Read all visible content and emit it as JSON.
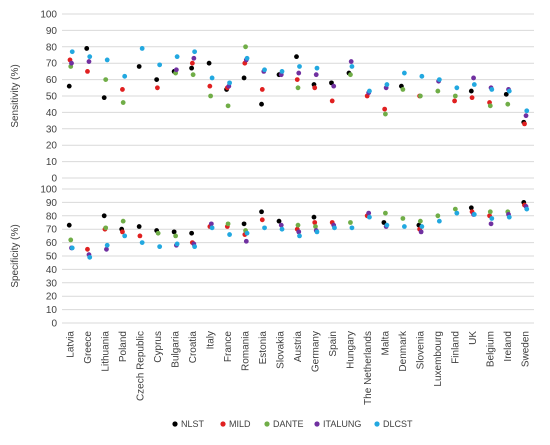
{
  "chart_data": [
    {
      "type": "scatter",
      "title": "",
      "ylabel": "Sensitivity (%)",
      "xlabel": "",
      "ylim": [
        0,
        100
      ],
      "yticks": [
        0,
        10,
        20,
        30,
        40,
        50,
        60,
        70,
        80,
        90,
        100
      ],
      "grid": true,
      "categories": [
        "Latvia",
        "Greece",
        "Lithuania",
        "Poland",
        "Czech Republic",
        "Cyprus",
        "Bulgaria",
        "Croatia",
        "Italy",
        "France",
        "Romania",
        "Estonia",
        "Slovakia",
        "Austria",
        "Germany",
        "Spain",
        "Hungary",
        "The Netherlands",
        "Malta",
        "Denmark",
        "Slovenia",
        "Luxembourg",
        "Finland",
        "UK",
        "Belgium",
        "Ireland",
        "Sweden"
      ],
      "series": [
        {
          "name": "NLST",
          "values": [
            56,
            79,
            49,
            null,
            68,
            60,
            65,
            67,
            70,
            54,
            61,
            45,
            63,
            74,
            57,
            58,
            64,
            null,
            null,
            56,
            null,
            null,
            null,
            53,
            null,
            51,
            34
          ]
        },
        {
          "name": "MILD",
          "values": [
            72,
            65,
            null,
            54,
            null,
            55,
            null,
            70,
            56,
            55,
            70,
            54,
            null,
            60,
            55,
            47,
            null,
            50,
            42,
            null,
            50,
            null,
            47,
            49,
            46,
            null,
            33
          ]
        },
        {
          "name": "DANTE",
          "values": [
            68,
            null,
            60,
            46,
            null,
            null,
            64,
            63,
            50,
            44,
            80,
            null,
            null,
            55,
            null,
            null,
            63,
            null,
            39,
            54,
            50,
            53,
            50,
            null,
            44,
            45,
            null
          ]
        },
        {
          "name": "ITALUNG",
          "values": [
            70,
            71,
            null,
            null,
            null,
            null,
            66,
            73,
            null,
            56,
            72,
            65,
            63,
            64,
            63,
            56,
            71,
            52,
            55,
            null,
            null,
            59,
            null,
            61,
            55,
            54,
            38
          ]
        },
        {
          "name": "DLCST",
          "values": [
            77,
            74,
            72,
            62,
            79,
            69,
            74,
            77,
            61,
            58,
            73,
            66,
            65,
            68,
            67,
            null,
            68,
            53,
            57,
            64,
            62,
            60,
            55,
            57,
            54,
            53,
            41
          ]
        }
      ]
    },
    {
      "type": "scatter",
      "title": "",
      "ylabel": "Specificity (%)",
      "xlabel": "",
      "ylim": [
        0,
        100
      ],
      "yticks": [
        0,
        10,
        20,
        30,
        40,
        50,
        60,
        70,
        80,
        90,
        100
      ],
      "grid": true,
      "categories": [
        "Latvia",
        "Greece",
        "Lithuania",
        "Poland",
        "Czech Republic",
        "Cyprus",
        "Bulgaria",
        "Croatia",
        "Italy",
        "France",
        "Romania",
        "Estonia",
        "Slovakia",
        "Austria",
        "Germany",
        "Spain",
        "Hungary",
        "The Netherlands",
        "Malta",
        "Denmark",
        "Slovenia",
        "Luxembourg",
        "Finland",
        "UK",
        "Belgium",
        "Ireland",
        "Sweden"
      ],
      "series": [
        {
          "name": "NLST",
          "values": [
            73,
            null,
            80,
            70,
            72,
            69,
            68,
            67,
            null,
            null,
            74,
            83,
            76,
            null,
            79,
            null,
            null,
            null,
            75,
            null,
            73,
            null,
            null,
            86,
            null,
            null,
            90
          ]
        },
        {
          "name": "MILD",
          "values": [
            null,
            55,
            70,
            68,
            65,
            null,
            null,
            60,
            72,
            72,
            66,
            77,
            null,
            70,
            75,
            75,
            null,
            80,
            null,
            null,
            70,
            null,
            null,
            83,
            80,
            null,
            88
          ]
        },
        {
          "name": "DANTE",
          "values": [
            62,
            null,
            71,
            76,
            null,
            67,
            65,
            null,
            null,
            74,
            69,
            null,
            null,
            73,
            72,
            null,
            75,
            null,
            82,
            78,
            76,
            80,
            85,
            null,
            83,
            83,
            null
          ]
        },
        {
          "name": "ITALUNG",
          "values": [
            56,
            51,
            55,
            null,
            null,
            null,
            58,
            59,
            74,
            null,
            61,
            null,
            73,
            68,
            69,
            73,
            null,
            82,
            72,
            null,
            68,
            null,
            null,
            81,
            74,
            81,
            87
          ]
        },
        {
          "name": "DLCST",
          "values": [
            56,
            49,
            58,
            65,
            60,
            57,
            59,
            57,
            71,
            66,
            67,
            71,
            70,
            65,
            68,
            71,
            71,
            79,
            73,
            72,
            72,
            76,
            82,
            81,
            78,
            79,
            85
          ]
        }
      ]
    }
  ],
  "legend": [
    {
      "name": "NLST",
      "color": "#000000"
    },
    {
      "name": "MILD",
      "color": "#e02020"
    },
    {
      "name": "DANTE",
      "color": "#70ad47"
    },
    {
      "name": "ITALUNG",
      "color": "#7030a0"
    },
    {
      "name": "DLCST",
      "color": "#22a8e0"
    }
  ],
  "legend_position": "bottom"
}
